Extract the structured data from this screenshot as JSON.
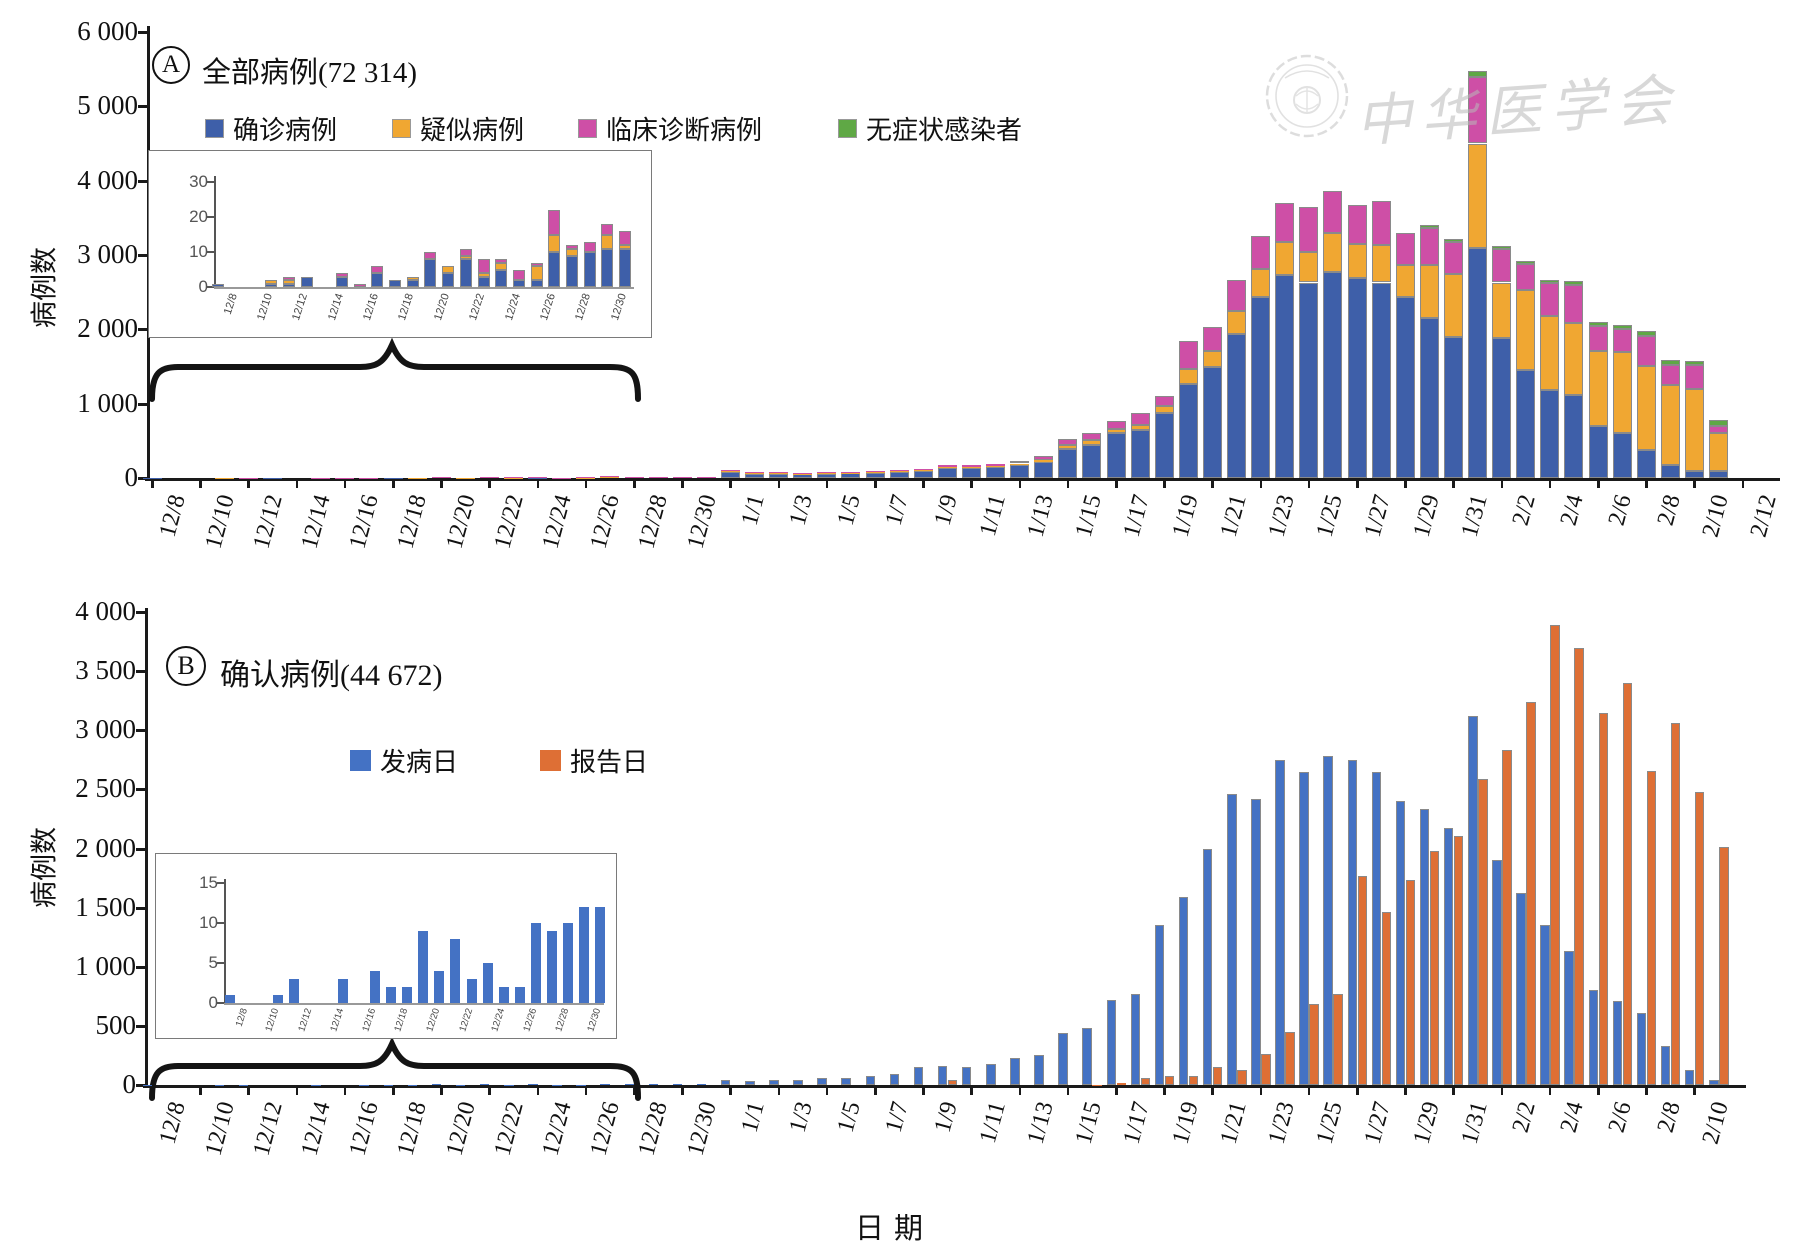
{
  "watermark": {
    "org": "中华医学会"
  },
  "figure": {
    "xlabel": "日期",
    "ylabel": "病例数"
  },
  "panelA": {
    "badge": "A",
    "title": "全部病例(72 314)"
  },
  "panelB": {
    "badge": "B",
    "title": "确认病例(44 672)"
  },
  "colors": {
    "confirmed": "#3E5FA9",
    "suspected": "#F0A732",
    "clinical": "#CE4FA6",
    "asymptomatic": "#5FA845",
    "onset": "#4472C4",
    "report": "#DE6F35",
    "bar_outline": "#8a8a8a"
  },
  "chart_data": [
    {
      "type": "bar",
      "stacked": true,
      "panel": "A",
      "title": "全部病例(72 314)",
      "ylabel": "病例数",
      "xlabel": "日期",
      "ylim": [
        0,
        6000
      ],
      "grid": false,
      "legend_position": "top",
      "y_ticks": [
        "0",
        "1 000",
        "2 000",
        "3 000",
        "4 000",
        "5 000",
        "6 000"
      ],
      "x_tick_labels": [
        "12/8",
        "12/10",
        "12/12",
        "12/14",
        "12/16",
        "12/18",
        "12/20",
        "12/22",
        "12/24",
        "12/26",
        "12/28",
        "12/30",
        "1/1",
        "1/3",
        "1/5",
        "1/7",
        "1/9",
        "1/11",
        "1/13",
        "1/15",
        "1/17",
        "1/19",
        "1/21",
        "1/23",
        "1/25",
        "1/27",
        "1/29",
        "1/31",
        "2/2",
        "2/4",
        "2/6",
        "2/8",
        "2/10",
        "2/12"
      ],
      "dates": [
        "12/8",
        "12/9",
        "12/10",
        "12/11",
        "12/12",
        "12/13",
        "12/14",
        "12/15",
        "12/16",
        "12/17",
        "12/18",
        "12/19",
        "12/20",
        "12/21",
        "12/22",
        "12/23",
        "12/24",
        "12/25",
        "12/26",
        "12/27",
        "12/28",
        "12/29",
        "12/30",
        "12/31",
        "1/1",
        "1/2",
        "1/3",
        "1/4",
        "1/5",
        "1/6",
        "1/7",
        "1/8",
        "1/9",
        "1/10",
        "1/11",
        "1/12",
        "1/13",
        "1/14",
        "1/15",
        "1/16",
        "1/17",
        "1/18",
        "1/19",
        "1/20",
        "1/21",
        "1/22",
        "1/23",
        "1/24",
        "1/25",
        "1/26",
        "1/27",
        "1/28",
        "1/29",
        "1/30",
        "1/31",
        "2/1",
        "2/2",
        "2/3",
        "2/4",
        "2/5",
        "2/6",
        "2/7",
        "2/8",
        "2/9",
        "2/10",
        "2/11"
      ],
      "series": [
        {
          "name": "确诊病例",
          "color": "#3E5FA9",
          "values": [
            1,
            0,
            0,
            1,
            1,
            3,
            0,
            3,
            0,
            4,
            2,
            2,
            8,
            4,
            8,
            3,
            5,
            2,
            2,
            10,
            9,
            10,
            11,
            11,
            80,
            60,
            60,
            50,
            60,
            65,
            70,
            85,
            95,
            130,
            130,
            145,
            175,
            220,
            390,
            450,
            600,
            640,
            870,
            1270,
            1490,
            1940,
            2430,
            2730,
            2630,
            2770,
            2690,
            2630,
            2440,
            2150,
            1900,
            3100,
            1880,
            1450,
            1180,
            1120,
            700,
            600,
            380,
            180,
            90,
            90
          ]
        },
        {
          "name": "疑似病例",
          "color": "#F0A732",
          "values": [
            0,
            0,
            0,
            1,
            1,
            0,
            0,
            0,
            0,
            0,
            0,
            1,
            0,
            2,
            1,
            1,
            2,
            0,
            4,
            5,
            2,
            0,
            4,
            1,
            10,
            8,
            8,
            8,
            8,
            8,
            10,
            10,
            12,
            15,
            18,
            18,
            20,
            25,
            50,
            60,
            60,
            70,
            100,
            200,
            220,
            300,
            380,
            440,
            410,
            520,
            460,
            500,
            420,
            720,
            840,
            1400,
            750,
            1075,
            1000,
            970,
            1010,
            1090,
            1130,
            1065,
            1110,
            520
          ]
        },
        {
          "name": "临床诊断病例",
          "color": "#CE4FA6",
          "values": [
            0,
            0,
            0,
            0,
            1,
            0,
            0,
            1,
            1,
            2,
            0,
            0,
            2,
            0,
            2,
            4,
            1,
            3,
            1,
            7,
            1,
            3,
            3,
            4,
            15,
            10,
            10,
            10,
            12,
            12,
            15,
            15,
            18,
            25,
            25,
            28,
            35,
            45,
            80,
            90,
            105,
            160,
            135,
            370,
            320,
            420,
            450,
            530,
            600,
            570,
            520,
            590,
            430,
            490,
            435,
            900,
            450,
            350,
            440,
            505,
            330,
            315,
            400,
            270,
            315,
            85
          ]
        },
        {
          "name": "无症状感染者",
          "color": "#5FA845",
          "values": [
            0,
            0,
            0,
            0,
            0,
            0,
            0,
            0,
            0,
            0,
            0,
            0,
            0,
            0,
            0,
            0,
            0,
            0,
            0,
            0,
            0,
            0,
            0,
            0,
            0,
            0,
            0,
            0,
            0,
            0,
            0,
            0,
            0,
            0,
            0,
            0,
            0,
            0,
            0,
            0,
            0,
            0,
            0,
            0,
            0,
            0,
            0,
            0,
            0,
            0,
            0,
            0,
            0,
            50,
            45,
            70,
            45,
            45,
            50,
            55,
            55,
            55,
            70,
            70,
            55,
            80
          ]
        }
      ],
      "inset": {
        "ylim": [
          0,
          30
        ],
        "y_ticks": [
          "0",
          "10",
          "20",
          "30"
        ],
        "x_tick_labels": [
          "12/8",
          "12/10",
          "12/12",
          "12/14",
          "12/16",
          "12/18",
          "12/20",
          "12/22",
          "12/24",
          "12/26",
          "12/28",
          "12/30"
        ],
        "dates": [
          "12/8",
          "12/9",
          "12/10",
          "12/11",
          "12/12",
          "12/13",
          "12/14",
          "12/15",
          "12/16",
          "12/17",
          "12/18",
          "12/19",
          "12/20",
          "12/21",
          "12/22",
          "12/23",
          "12/24",
          "12/25",
          "12/26",
          "12/27",
          "12/28",
          "12/29",
          "12/30",
          "12/31"
        ],
        "series": [
          {
            "name": "确诊病例",
            "color": "#3E5FA9",
            "values": [
              1,
              0,
              0,
              1,
              1,
              3,
              0,
              3,
              0,
              4,
              2,
              2,
              8,
              4,
              8,
              3,
              5,
              2,
              2,
              10,
              9,
              10,
              11,
              11
            ]
          },
          {
            "name": "疑似病例",
            "color": "#F0A732",
            "values": [
              0,
              0,
              0,
              1,
              1,
              0,
              0,
              0,
              0,
              0,
              0,
              1,
              0,
              2,
              1,
              1,
              2,
              0,
              4,
              5,
              2,
              0,
              4,
              1
            ]
          },
          {
            "name": "临床诊断病例",
            "color": "#CE4FA6",
            "values": [
              0,
              0,
              0,
              0,
              1,
              0,
              0,
              1,
              1,
              2,
              0,
              0,
              2,
              0,
              2,
              4,
              1,
              3,
              1,
              7,
              1,
              3,
              3,
              4
            ]
          }
        ]
      }
    },
    {
      "type": "bar",
      "stacked": false,
      "panel": "B",
      "title": "确认病例(44 672)",
      "ylabel": "病例数",
      "xlabel": "日期",
      "ylim": [
        0,
        4000
      ],
      "grid": false,
      "legend_position": "top",
      "y_ticks": [
        "0",
        "500",
        "1 000",
        "1 500",
        "2 000",
        "2 500",
        "3 000",
        "3 500",
        "4 000"
      ],
      "x_tick_labels": [
        "12/8",
        "12/10",
        "12/12",
        "12/14",
        "12/16",
        "12/18",
        "12/20",
        "12/22",
        "12/24",
        "12/26",
        "12/28",
        "12/30",
        "1/1",
        "1/3",
        "1/5",
        "1/7",
        "1/9",
        "1/11",
        "1/13",
        "1/15",
        "1/17",
        "1/19",
        "1/21",
        "1/23",
        "1/25",
        "1/27",
        "1/29",
        "1/31",
        "2/2",
        "2/4",
        "2/6",
        "2/8",
        "2/10"
      ],
      "dates": [
        "12/8",
        "12/9",
        "12/10",
        "12/11",
        "12/12",
        "12/13",
        "12/14",
        "12/15",
        "12/16",
        "12/17",
        "12/18",
        "12/19",
        "12/20",
        "12/21",
        "12/22",
        "12/23",
        "12/24",
        "12/25",
        "12/26",
        "12/27",
        "12/28",
        "12/29",
        "12/30",
        "12/31",
        "1/1",
        "1/2",
        "1/3",
        "1/4",
        "1/5",
        "1/6",
        "1/7",
        "1/8",
        "1/9",
        "1/10",
        "1/11",
        "1/12",
        "1/13",
        "1/14",
        "1/15",
        "1/16",
        "1/17",
        "1/18",
        "1/19",
        "1/20",
        "1/21",
        "1/22",
        "1/23",
        "1/24",
        "1/25",
        "1/26",
        "1/27",
        "1/28",
        "1/29",
        "1/30",
        "1/31",
        "2/1",
        "2/2",
        "2/3",
        "2/4",
        "2/5",
        "2/6",
        "2/7",
        "2/8",
        "2/9",
        "2/10",
        "2/11"
      ],
      "series": [
        {
          "name": "发病日",
          "color": "#4472C4",
          "values": [
            1,
            0,
            0,
            1,
            3,
            0,
            0,
            3,
            0,
            4,
            2,
            2,
            9,
            4,
            8,
            3,
            5,
            2,
            2,
            10,
            9,
            10,
            12,
            12,
            40,
            35,
            40,
            45,
            55,
            60,
            75,
            90,
            150,
            160,
            150,
            175,
            230,
            250,
            440,
            480,
            720,
            770,
            1350,
            1590,
            2000,
            2460,
            2420,
            2750,
            2650,
            2780,
            2750,
            2650,
            2400,
            2330,
            2170,
            3120,
            1900,
            1620,
            1350,
            1130,
            800,
            710,
            610,
            330,
            130,
            40
          ]
        },
        {
          "name": "报告日",
          "color": "#DE6F35",
          "values": [
            0,
            0,
            0,
            0,
            0,
            0,
            0,
            0,
            0,
            0,
            0,
            0,
            0,
            0,
            0,
            0,
            0,
            0,
            0,
            0,
            0,
            0,
            0,
            0,
            0,
            0,
            0,
            0,
            0,
            0,
            0,
            0,
            0,
            41,
            0,
            0,
            0,
            0,
            0,
            4,
            17,
            59,
            77,
            77,
            149,
            131,
            259,
            444,
            688,
            769,
            1771,
            1459,
            1737,
            1982,
            2102,
            2590,
            2829,
            3235,
            3887,
            3694,
            3143,
            3399,
            2656,
            3062,
            2478,
            2015
          ]
        }
      ],
      "inset": {
        "ylim": [
          0,
          15
        ],
        "y_ticks": [
          "0",
          "5",
          "10",
          "15"
        ],
        "x_tick_labels": [
          "12/8",
          "12/10",
          "12/12",
          "12/14",
          "12/16",
          "12/18",
          "12/20",
          "12/22",
          "12/24",
          "12/26",
          "12/28",
          "12/30"
        ],
        "dates": [
          "12/8",
          "12/9",
          "12/10",
          "12/11",
          "12/12",
          "12/13",
          "12/14",
          "12/15",
          "12/16",
          "12/17",
          "12/18",
          "12/19",
          "12/20",
          "12/21",
          "12/22",
          "12/23",
          "12/24",
          "12/25",
          "12/26",
          "12/27",
          "12/28",
          "12/29",
          "12/30",
          "12/31"
        ],
        "series": [
          {
            "name": "发病日",
            "color": "#4472C4",
            "values": [
              1,
              0,
              0,
              1,
              3,
              0,
              0,
              3,
              0,
              4,
              2,
              2,
              9,
              4,
              8,
              3,
              5,
              2,
              2,
              10,
              9,
              10,
              12,
              12
            ]
          }
        ]
      }
    }
  ]
}
